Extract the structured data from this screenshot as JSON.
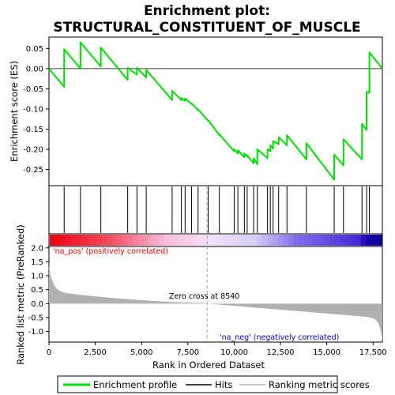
{
  "chart_data": {
    "type": "line",
    "title_line1": "Enrichment plot:",
    "title_line2": "STRUCTURAL_CONSTITUENT_OF_MUSCLE",
    "xlabel": "Rank in Ordered Dataset",
    "ylabel_top": "Enrichment score (ES)",
    "ylabel_bottom": "Ranked list metric (PreRanked)",
    "x_ticks": [
      0,
      2500,
      5000,
      7500,
      10000,
      12500,
      15000,
      17500
    ],
    "x_tick_labels": [
      "0",
      "2,500",
      "5,000",
      "7,500",
      "10,000",
      "12,500",
      "15,000",
      "17,500"
    ],
    "xlim": [
      0,
      18000
    ],
    "es_yticks": [
      0.05,
      0.0,
      -0.05,
      -0.1,
      -0.15,
      -0.2,
      -0.25
    ],
    "es_ytick_labels": [
      "0.05",
      "0.00",
      "-0.05",
      "-0.10",
      "-0.15",
      "-0.20",
      "-0.25"
    ],
    "es_ylim": [
      -0.29,
      0.078
    ],
    "metric_yticks": [
      2.0,
      1.5,
      1.0,
      0.5,
      0.0,
      -0.5,
      -1.0
    ],
    "metric_ytick_labels": [
      "2.0",
      "1.5",
      "1.0",
      "0.5",
      "0.0",
      "-0.5",
      "-1.0"
    ],
    "metric_ylim": [
      -1.38,
      2.05
    ],
    "hits": [
      820,
      1700,
      2800,
      4250,
      4750,
      5250,
      6650,
      7150,
      7350,
      7700,
      8050,
      8600,
      9200,
      10000,
      10200,
      10550,
      10700,
      11050,
      11250,
      11800,
      11950,
      12100,
      12400,
      12850,
      13900,
      15400,
      15900,
      16900,
      17150,
      17300
    ],
    "es_profile": [
      [
        0,
        0.0
      ],
      [
        820,
        -0.045
      ],
      [
        820,
        0.048
      ],
      [
        1700,
        0.0
      ],
      [
        1700,
        0.065
      ],
      [
        2800,
        0.005
      ],
      [
        2800,
        0.052
      ],
      [
        4250,
        -0.028
      ],
      [
        4250,
        0.002
      ],
      [
        4750,
        -0.015
      ],
      [
        4750,
        0.002
      ],
      [
        5250,
        -0.022
      ],
      [
        5250,
        -0.003
      ],
      [
        6650,
        -0.078
      ],
      [
        6650,
        -0.055
      ],
      [
        7150,
        -0.078
      ],
      [
        7150,
        -0.073
      ],
      [
        7350,
        -0.08
      ],
      [
        7350,
        -0.074
      ],
      [
        7700,
        -0.088
      ],
      [
        7700,
        -0.086
      ],
      [
        8050,
        -0.103
      ],
      [
        8050,
        -0.101
      ],
      [
        8600,
        -0.13
      ],
      [
        8600,
        -0.128
      ],
      [
        9200,
        -0.165
      ],
      [
        9200,
        -0.163
      ],
      [
        10000,
        -0.205
      ],
      [
        10000,
        -0.2
      ],
      [
        10200,
        -0.21
      ],
      [
        10200,
        -0.202
      ],
      [
        10550,
        -0.22
      ],
      [
        10550,
        -0.21
      ],
      [
        10700,
        -0.218
      ],
      [
        10700,
        -0.215
      ],
      [
        11050,
        -0.235
      ],
      [
        11050,
        -0.222
      ],
      [
        11250,
        -0.237
      ],
      [
        11250,
        -0.2
      ],
      [
        11800,
        -0.222
      ],
      [
        11800,
        -0.2
      ],
      [
        11950,
        -0.205
      ],
      [
        11950,
        -0.19
      ],
      [
        12100,
        -0.198
      ],
      [
        12100,
        -0.18
      ],
      [
        12400,
        -0.187
      ],
      [
        12400,
        -0.17
      ],
      [
        12850,
        -0.19
      ],
      [
        12850,
        -0.165
      ],
      [
        13900,
        -0.225
      ],
      [
        13900,
        -0.185
      ],
      [
        15400,
        -0.275
      ],
      [
        15400,
        -0.213
      ],
      [
        15900,
        -0.24
      ],
      [
        15900,
        -0.175
      ],
      [
        16900,
        -0.225
      ],
      [
        16900,
        -0.137
      ],
      [
        17150,
        -0.152
      ],
      [
        17150,
        -0.057
      ],
      [
        17300,
        -0.06
      ],
      [
        17300,
        0.04
      ],
      [
        18000,
        0.0
      ]
    ],
    "zero_cross_rank": 8540
  },
  "annotations": {
    "na_pos": "'na_pos' (positively correlated)",
    "na_neg": "'na_neg' (negatively correlated)",
    "zero_cross": "Zero cross at 8540"
  },
  "legend": {
    "items": [
      "Enrichment profile",
      "Hits",
      "Ranking metric scores"
    ]
  },
  "colors": {
    "es_line": "#00dd00",
    "hits": "#000000",
    "metric_fill": "#b0b0b0",
    "na_pos_text": "#ff0000",
    "na_neg_text": "#0000ff",
    "zero_cross_line": "#a0a0a0"
  }
}
